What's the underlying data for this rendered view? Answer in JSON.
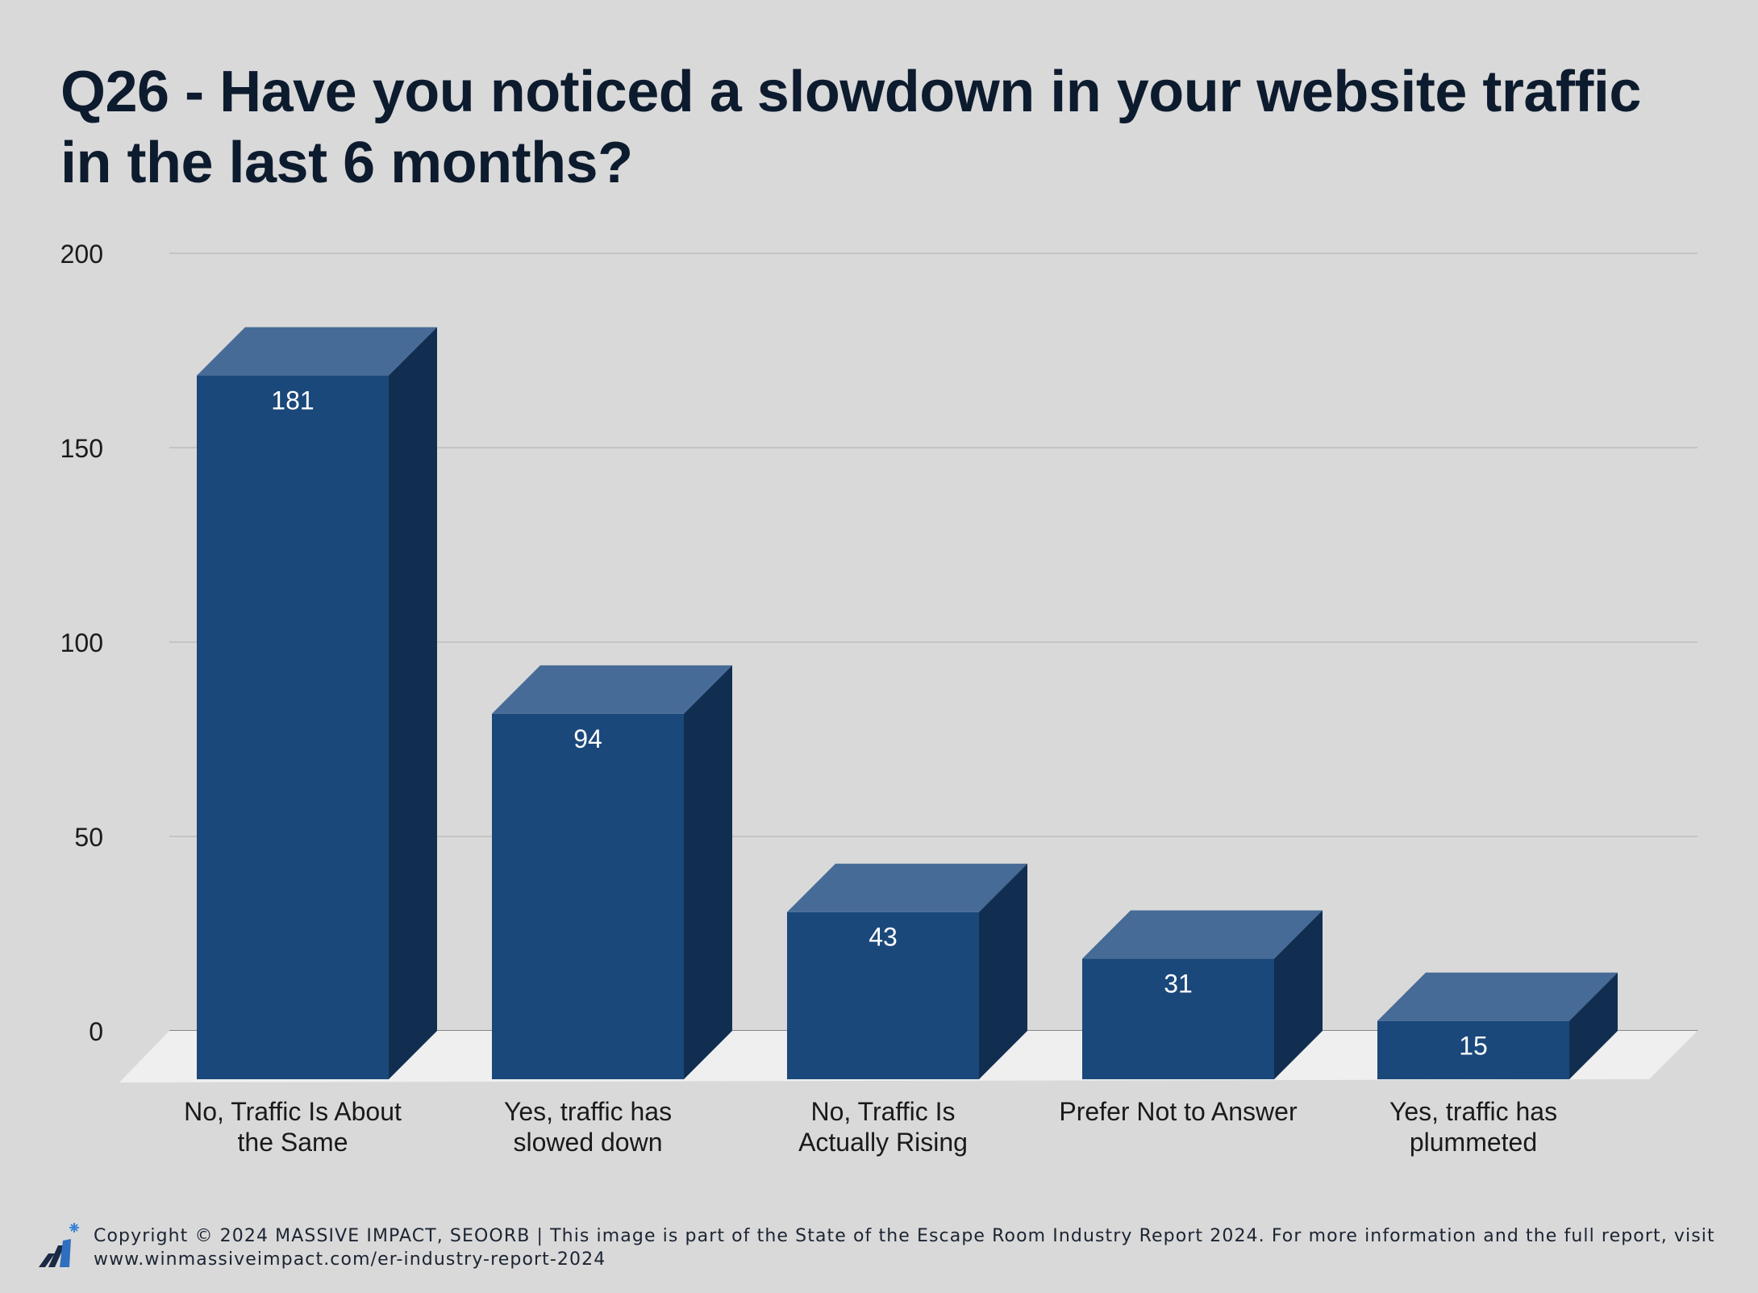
{
  "page": {
    "background": "#d9d9d9"
  },
  "chart_data": {
    "type": "bar",
    "title": "Q26 - Have you noticed a slowdown in your website traffic in the last 6 months?",
    "categories": [
      "No, Traffic Is About the Same",
      "Yes, traffic has slowed down",
      "No, Traffic Is Actually Rising",
      "Prefer Not to Answer",
      "Yes, traffic has plummeted"
    ],
    "values": [
      181,
      94,
      43,
      31,
      15
    ],
    "data_labels": [
      "181",
      "94",
      "43",
      "31",
      "15"
    ],
    "ylim": [
      0,
      200
    ],
    "yticks": [
      0,
      50,
      100,
      150,
      200
    ],
    "ytick_labels": [
      "0",
      "50",
      "100",
      "150",
      "200"
    ],
    "xlabel": "",
    "ylabel": "",
    "grid": true,
    "style": "3d-column",
    "colors": {
      "front": "#1b487a",
      "top": "#466b96",
      "side": "#112e51",
      "floor": "#efefef",
      "grid": "#b0b0b0",
      "text": "#1a1a1a",
      "label_on_bar": "#ffffff"
    }
  },
  "footer": {
    "logo_icon": "massive-impact-logo-icon",
    "copyright": "Copyright © 2024 MASSIVE IMPACT, SEOORB | This image is part of the State of the Escape Room Industry Report 2024. For more information and the full report, visit www.winmassiveimpact.com/er-industry-report-2024"
  }
}
